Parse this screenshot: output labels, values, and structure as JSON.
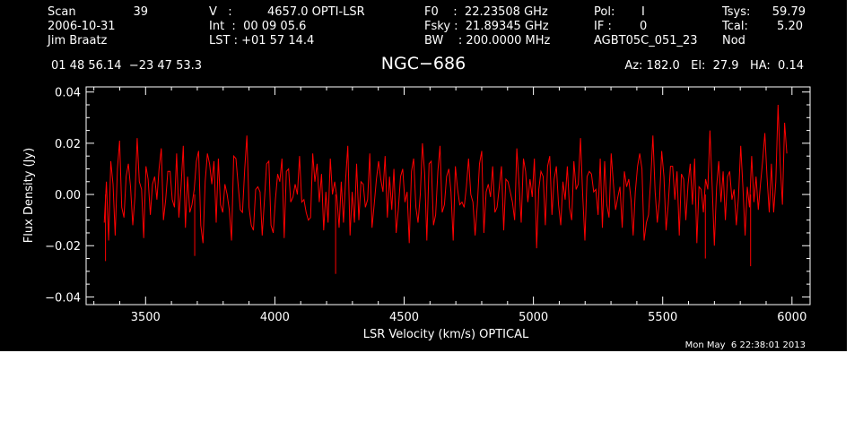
{
  "header": {
    "scan_label": "Scan",
    "scan_value": "39",
    "date": "2006-10-31",
    "observer": "Jim Braatz",
    "v_label": "V   :",
    "v_value": "4657.0 OPTI-LSR",
    "int_line": "Int  :  00 09 05.6",
    "lst_line": "LST : +01 57 14.4",
    "f0_line": "F0    :  22.23508 GHz",
    "fsky_line": "Fsky :  21.89345 GHz",
    "bw_line": "BW    : 200.0000 MHz",
    "pol_label": "Pol:",
    "pol_value": "I",
    "if_label": "IF :",
    "if_value": "0",
    "project": "AGBT05C_051_23",
    "tsys_label": "Tsys:",
    "tsys_value": "59.79",
    "tcal_label": "Tcal:",
    "tcal_value": "5.20",
    "mode": "Nod",
    "coords": "01 48 56.14  −23 47 53.3",
    "source": "NGC−686",
    "azel": "Az: 182.0   El:  27.9   HA:  0.14"
  },
  "footer": {
    "timestamp": "Mon May  6 22:38:01 2013"
  },
  "colors": {
    "background": "#000000",
    "foreground": "#ffffff",
    "trace": "#ff0000"
  },
  "chart_data": {
    "type": "line",
    "title": "NGC−686",
    "xlabel": "LSR Velocity (km/s) OPTICAL",
    "ylabel": "Flux Density (Jy)",
    "xlim": [
      3270,
      6070
    ],
    "ylim": [
      -0.043,
      0.042
    ],
    "x_ticks": [
      {
        "value": 3500,
        "label": "3500"
      },
      {
        "value": 4000,
        "label": "4000"
      },
      {
        "value": 4500,
        "label": "4500"
      },
      {
        "value": 5000,
        "label": "5000"
      },
      {
        "value": 5500,
        "label": "5500"
      },
      {
        "value": 6000,
        "label": "6000"
      }
    ],
    "y_ticks": [
      {
        "value": -0.04,
        "label": "−0.04"
      },
      {
        "value": -0.02,
        "label": "−0.02"
      },
      {
        "value": 0.0,
        "label": "0.00"
      },
      {
        "value": 0.02,
        "label": "0.02"
      },
      {
        "value": 0.04,
        "label": "0.04"
      }
    ],
    "series": [
      {
        "x_start": 3340,
        "x_end": 5980,
        "values": [
          -0.011,
          0.005,
          -0.018,
          0.013,
          0.004,
          -0.016,
          0.01,
          0.021,
          -0.005,
          -0.009,
          0.007,
          0.012,
          0.003,
          -0.012,
          -0.001,
          0.022,
          0.005,
          0.002,
          -0.017,
          0.011,
          0.006,
          -0.008,
          0.004,
          0.007,
          -0.002,
          0.01,
          0.018,
          -0.01,
          -0.002,
          0.009,
          0.009,
          -0.002,
          -0.005,
          0.016,
          -0.009,
          0.003,
          0.019,
          -0.013,
          0.007,
          -0.007,
          -0.004,
          0.002,
          0.013,
          0.017,
          -0.012,
          -0.019,
          0.005,
          0.016,
          0.012,
          0.004,
          0.013,
          -0.011,
          0.014,
          -0.004,
          -0.007,
          0.004,
          0.0,
          -0.006,
          -0.018,
          0.015,
          0.014,
          0.004,
          -0.006,
          -0.007,
          0.01,
          0.023,
          -0.005,
          -0.012,
          -0.014,
          0.002,
          0.003,
          0.001,
          -0.016,
          -0.002,
          0.012,
          0.013,
          -0.012,
          -0.015,
          -0.002,
          0.008,
          0.005,
          0.014,
          -0.017,
          0.009,
          0.01,
          -0.003,
          -0.001,
          0.004,
          0.0,
          0.015,
          -0.003,
          -0.002,
          -0.007,
          -0.01,
          -0.009,
          0.016,
          0.005,
          0.012,
          -0.003,
          0.008,
          -0.014,
          0.001,
          -0.011,
          0.014,
          0.0,
          0.005,
          -0.001,
          -0.013,
          0.005,
          -0.011,
          0.006,
          0.019,
          -0.016,
          0.001,
          -0.011,
          0.012,
          -0.01,
          0.005,
          0.004,
          -0.005,
          -0.002,
          0.016,
          -0.013,
          -0.004,
          0.006,
          0.013,
          0.006,
          0.001,
          0.015,
          -0.009,
          0.007,
          -0.006,
          0.01,
          -0.015,
          -0.006,
          0.007,
          0.01,
          -0.003,
          0.001,
          -0.019,
          0.009,
          0.014,
          -0.005,
          -0.011,
          0.0,
          0.02,
          0.008,
          -0.018,
          0.012,
          0.013,
          -0.012,
          -0.008,
          0.009,
          0.019,
          -0.007,
          -0.004,
          0.007,
          0.01,
          0.001,
          -0.018,
          0.011,
          0.002,
          -0.004,
          -0.003,
          -0.005,
          0.003,
          0.014,
          0.0,
          -0.003,
          -0.016,
          -0.004,
          0.012,
          0.017,
          -0.015,
          0.001,
          0.004,
          -0.001,
          0.011,
          -0.007,
          -0.005,
          0.003,
          0.011,
          -0.014,
          0.006,
          0.005,
          0.001,
          -0.003,
          -0.01,
          0.018,
          0.004,
          -0.011,
          0.014,
          0.009,
          -0.003,
          0.006,
          -0.001,
          0.014,
          -0.021,
          0.002,
          0.009,
          0.007,
          -0.012,
          0.011,
          0.015,
          -0.008,
          0.006,
          0.011,
          -0.004,
          -0.012,
          0.005,
          -0.002,
          0.011,
          -0.005,
          -0.01,
          0.013,
          0.002,
          0.004,
          0.022,
          0.0,
          -0.018,
          0.007,
          0.009,
          0.008,
          0.001,
          0.002,
          -0.008,
          0.014,
          -0.013,
          0.013,
          -0.004,
          -0.009,
          0.016,
          0.004,
          -0.006,
          -0.001,
          0.003,
          -0.013,
          0.009,
          0.003,
          0.006,
          -0.002,
          -0.016,
          0.001,
          0.011,
          0.016,
          0.01,
          -0.018,
          -0.011,
          -0.008,
          0.006,
          0.023,
          0.001,
          -0.011,
          -0.002,
          0.017,
          0.007,
          -0.014,
          -0.004,
          0.011,
          0.011,
          -0.002,
          0.009,
          -0.016,
          0.008,
          0.006,
          -0.01,
          0.004,
          0.012,
          -0.004,
          0.014,
          -0.019,
          0.003,
          0.002,
          -0.007,
          0.006,
          0.002,
          0.025,
          0.003,
          -0.02,
          0.003,
          0.013,
          -0.003,
          0.009,
          -0.01,
          0.007,
          0.009,
          -0.002,
          0.002,
          -0.012,
          -0.001,
          0.019,
          0.003,
          -0.016,
          0.003,
          -0.005,
          0.015,
          -0.003,
          0.007,
          -0.006,
          0.004,
          0.013,
          0.024,
          0.007,
          -0.007,
          0.012,
          -0.007,
          0.005,
          0.035,
          0.012,
          -0.004,
          0.028,
          0.016
        ],
        "min_values": [
          {
            "x": 3345,
            "y": -0.026
          },
          {
            "x": 3690,
            "y": -0.024
          },
          {
            "x": 4235,
            "y": -0.031
          },
          {
            "x": 5665,
            "y": -0.025
          },
          {
            "x": 5840,
            "y": -0.028
          }
        ]
      }
    ]
  }
}
